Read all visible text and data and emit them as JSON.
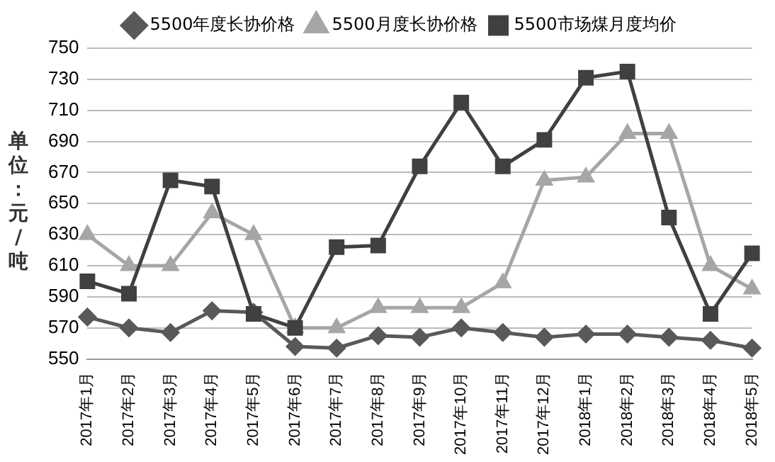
{
  "chart_data": {
    "type": "line",
    "ylabel": "单位：元/吨",
    "categories": [
      "2017年1月",
      "2017年2月",
      "2017年3月",
      "2017年4月",
      "2017年5月",
      "2017年6月",
      "2017年7月",
      "2017年8月",
      "2017年9月",
      "2017年10月",
      "2017年11月",
      "2017年12月",
      "2018年1月",
      "2018年2月",
      "2018年3月",
      "2018年4月",
      "2018年5月"
    ],
    "series": [
      {
        "name": "5500年度长协价格",
        "color": "#595959",
        "marker": "diamond",
        "values": [
          577,
          570,
          567,
          581,
          580,
          558,
          557,
          565,
          564,
          570,
          567,
          564,
          566,
          566,
          564,
          562,
          557
        ]
      },
      {
        "name": "5500月度长协价格",
        "color": "#a6a6a6",
        "marker": "triangle",
        "values": [
          630,
          610,
          610,
          644,
          630,
          570,
          570,
          583,
          583,
          583,
          599,
          665,
          667,
          695,
          695,
          610,
          595
        ]
      },
      {
        "name": "5500市场煤月度均价",
        "color": "#404040",
        "marker": "square",
        "values": [
          600,
          592,
          665,
          661,
          579,
          570,
          622,
          623,
          674,
          715,
          674,
          691,
          731,
          735,
          641,
          579,
          618
        ]
      }
    ],
    "ylim": [
      550,
      750
    ],
    "yticks": [
      550,
      570,
      590,
      610,
      630,
      650,
      670,
      690,
      710,
      730,
      750
    ],
    "grid": "y",
    "legend": "top",
    "line_style": "solid"
  }
}
